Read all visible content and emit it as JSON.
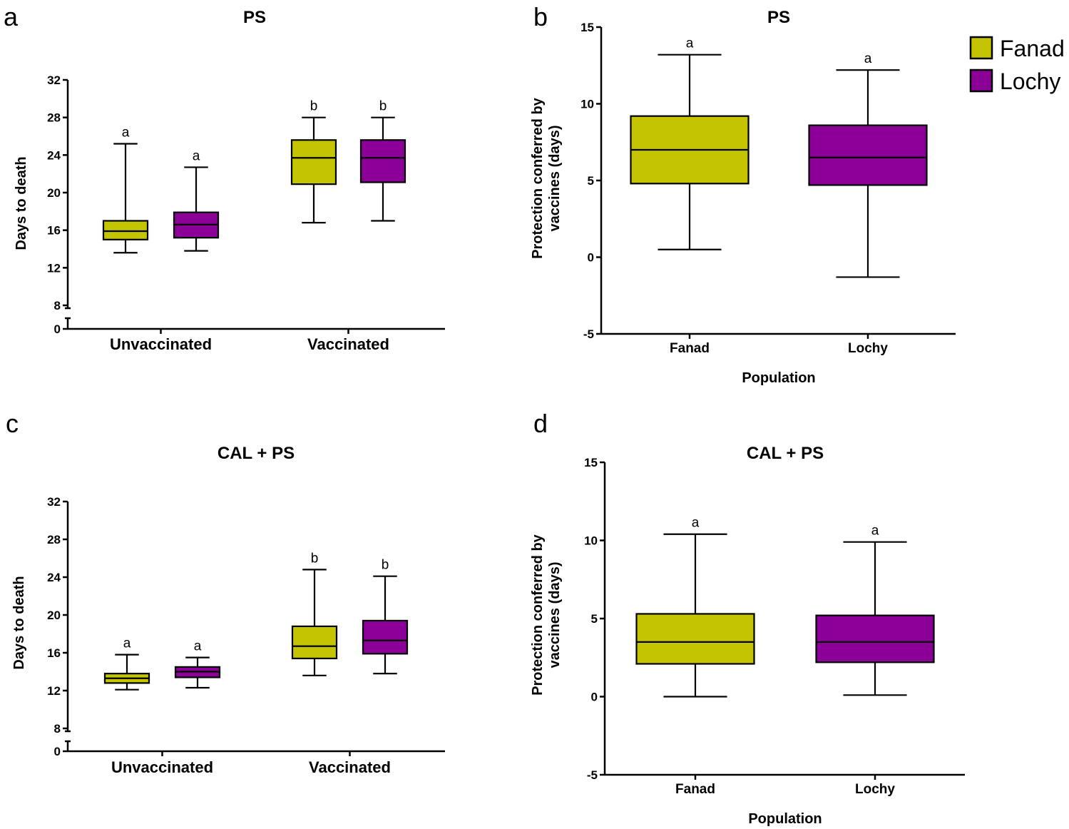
{
  "colors": {
    "fanad": "#c4c400",
    "lochy": "#8b0097",
    "ink": "#000000"
  },
  "legend": [
    {
      "label": "Fanad",
      "color": "#c4c400"
    },
    {
      "label": "Lochy",
      "color": "#8b0097"
    }
  ],
  "chart_data": [
    {
      "panel": "a",
      "type": "box",
      "title": "PS",
      "xlabel": "",
      "ylabel": "Days to death",
      "y_ticks": [
        0,
        8,
        12,
        16,
        20,
        24,
        28,
        32
      ],
      "y_break": [
        0,
        8
      ],
      "ylim": [
        8,
        32
      ],
      "categories": [
        "Unvaccinated",
        "Vaccinated"
      ],
      "series": [
        {
          "name": "Fanad",
          "boxes": [
            {
              "category": "Unvaccinated",
              "min": 13.6,
              "q1": 15.0,
              "median": 15.9,
              "q3": 17.0,
              "max": 25.2,
              "sig": "a"
            },
            {
              "category": "Vaccinated",
              "min": 16.8,
              "q1": 20.9,
              "median": 23.7,
              "q3": 25.6,
              "max": 28.0,
              "sig": "b"
            }
          ]
        },
        {
          "name": "Lochy",
          "boxes": [
            {
              "category": "Unvaccinated",
              "min": 13.8,
              "q1": 15.2,
              "median": 16.6,
              "q3": 17.9,
              "max": 22.7,
              "sig": "a"
            },
            {
              "category": "Vaccinated",
              "min": 17.0,
              "q1": 21.1,
              "median": 23.7,
              "q3": 25.6,
              "max": 28.0,
              "sig": "b"
            }
          ]
        }
      ]
    },
    {
      "panel": "b",
      "type": "box",
      "title": "PS",
      "xlabel": "Population",
      "ylabel": "Protection conferred by vaccines (days)",
      "y_ticks": [
        -5,
        0,
        5,
        10,
        15
      ],
      "ylim": [
        -5,
        15
      ],
      "categories": [
        "Fanad",
        "Lochy"
      ],
      "series": [
        {
          "name": "Fanad",
          "boxes": [
            {
              "category": "Fanad",
              "min": 0.5,
              "q1": 4.8,
              "median": 7.0,
              "q3": 9.2,
              "max": 13.2,
              "sig": "a"
            }
          ]
        },
        {
          "name": "Lochy",
          "boxes": [
            {
              "category": "Lochy",
              "min": -1.3,
              "q1": 4.7,
              "median": 6.5,
              "q3": 8.6,
              "max": 12.2,
              "sig": "a"
            }
          ]
        }
      ]
    },
    {
      "panel": "c",
      "type": "box",
      "title": "CAL + PS",
      "xlabel": "",
      "ylabel": "Days to death",
      "y_ticks": [
        0,
        8,
        12,
        16,
        20,
        24,
        28,
        32
      ],
      "y_break": [
        0,
        8
      ],
      "ylim": [
        8,
        32
      ],
      "categories": [
        "Unvaccinated",
        "Vaccinated"
      ],
      "series": [
        {
          "name": "Fanad",
          "boxes": [
            {
              "category": "Unvaccinated",
              "min": 12.1,
              "q1": 12.8,
              "median": 13.3,
              "q3": 13.8,
              "max": 15.8,
              "sig": "a"
            },
            {
              "category": "Vaccinated",
              "min": 13.6,
              "q1": 15.4,
              "median": 16.7,
              "q3": 18.8,
              "max": 24.8,
              "sig": "b"
            }
          ]
        },
        {
          "name": "Lochy",
          "boxes": [
            {
              "category": "Unvaccinated",
              "min": 12.3,
              "q1": 13.4,
              "median": 14.0,
              "q3": 14.5,
              "max": 15.5,
              "sig": "a"
            },
            {
              "category": "Vaccinated",
              "min": 13.8,
              "q1": 15.9,
              "median": 17.3,
              "q3": 19.4,
              "max": 24.1,
              "sig": "b"
            }
          ]
        }
      ]
    },
    {
      "panel": "d",
      "type": "box",
      "title": "CAL + PS",
      "xlabel": "Population",
      "ylabel": "Protection conferred by vaccines (days)",
      "y_ticks": [
        -5,
        0,
        5,
        10,
        15
      ],
      "ylim": [
        -5,
        15
      ],
      "categories": [
        "Fanad",
        "Lochy"
      ],
      "series": [
        {
          "name": "Fanad",
          "boxes": [
            {
              "category": "Fanad",
              "min": 0.0,
              "q1": 2.1,
              "median": 3.5,
              "q3": 5.3,
              "max": 10.4,
              "sig": "a"
            }
          ]
        },
        {
          "name": "Lochy",
          "boxes": [
            {
              "category": "Lochy",
              "min": 0.1,
              "q1": 2.2,
              "median": 3.5,
              "q3": 5.2,
              "max": 9.9,
              "sig": "a"
            }
          ]
        }
      ]
    }
  ]
}
